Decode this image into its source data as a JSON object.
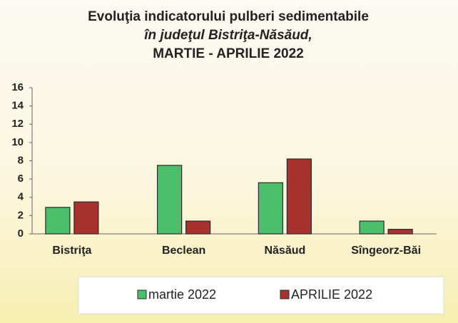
{
  "chart_data": {
    "type": "bar",
    "title": "Evoluţia indicatorului pulberi sedimentabile",
    "subtitle": "în judeţul Bistriţa-Năsăud,",
    "period": "MARTIE  - APRILIE 2022",
    "categories": [
      "Bistriţa",
      "Beclean",
      "Năsăud",
      "Sîngeorz-Băi"
    ],
    "series": [
      {
        "name": "martie 2022",
        "color": "#4cbf6a",
        "values": [
          2.9,
          7.5,
          5.6,
          1.4
        ]
      },
      {
        "name": "APRILIE 2022",
        "color": "#a8322c",
        "values": [
          3.5,
          1.4,
          8.2,
          0.5
        ]
      }
    ],
    "ylim": [
      0,
      16
    ],
    "yticks": [
      0,
      2,
      4,
      6,
      8,
      10,
      12,
      14,
      16
    ],
    "grid": false
  }
}
